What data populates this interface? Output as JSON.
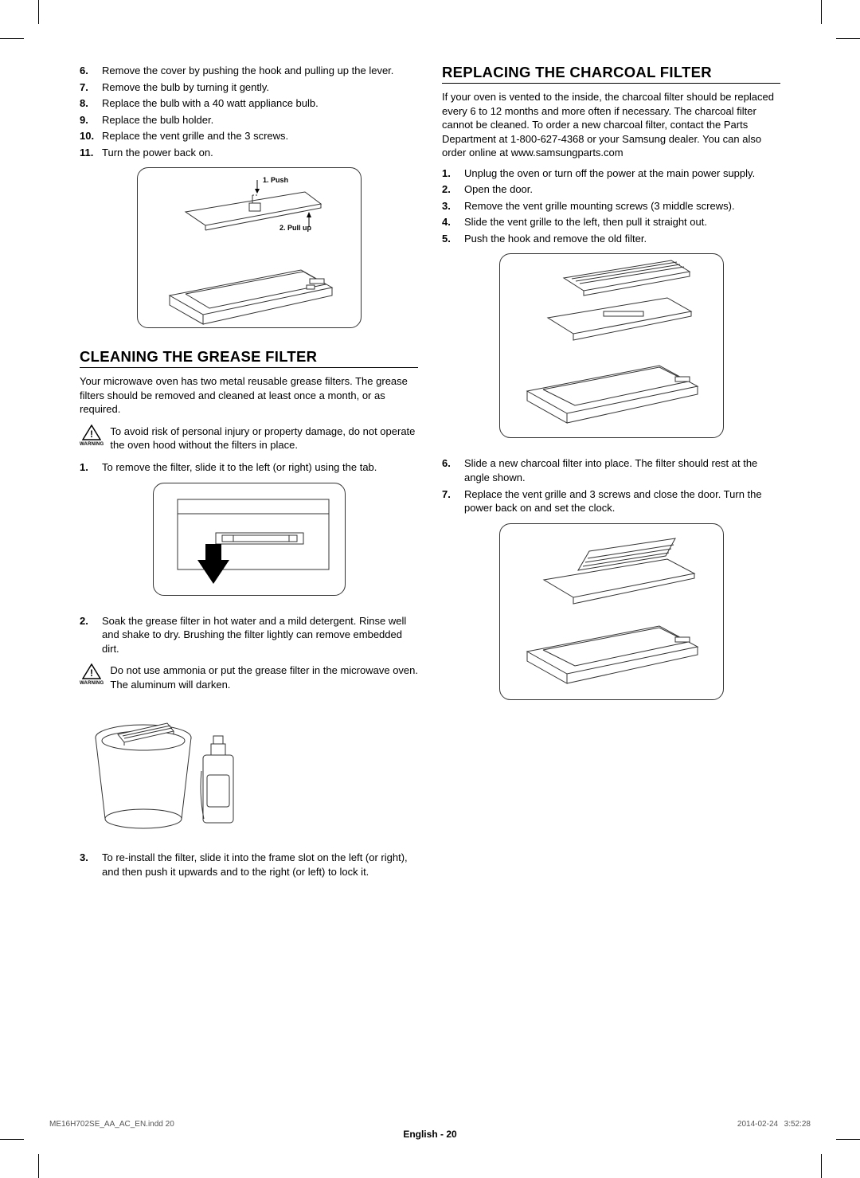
{
  "left": {
    "steps_a": [
      {
        "n": "6.",
        "t": "Remove the cover by pushing the hook and pulling up the lever."
      },
      {
        "n": "7.",
        "t": "Remove the bulb by turning it gently."
      },
      {
        "n": "8.",
        "t": "Replace the bulb with a 40 watt appliance bulb."
      },
      {
        "n": "9.",
        "t": "Replace the bulb holder."
      },
      {
        "n": "10.",
        "t": "Replace the vent grille and the 3 screws."
      },
      {
        "n": "11.",
        "t": "Turn the power back on."
      }
    ],
    "fig1_labels": {
      "push": "1. Push",
      "pull": "2. Pull up"
    },
    "h2_grease": "CLEANING THE GREASE FILTER",
    "grease_intro": "Your microwave oven has two metal reusable grease filters. The grease filters should be removed and cleaned at least once a month, or as required.",
    "warning1": "To avoid risk of personal injury or property damage, do not operate the oven hood without the filters in place.",
    "warning_label": "WARNING",
    "grease_steps_a": [
      {
        "n": "1.",
        "t": "To remove the filter, slide it to the left (or right) using the tab."
      }
    ],
    "grease_step2": {
      "n": "2.",
      "t": "Soak the grease filter in hot water and a mild detergent. Rinse well and shake to dry. Brushing the filter lightly can remove embedded dirt."
    },
    "warning2": "Do not use ammonia or put the grease filter in the microwave oven. The aluminum will darken.",
    "grease_step3": {
      "n": "3.",
      "t": "To re-install the filter, slide it into the frame slot on the left (or right), and then push it upwards and to the right (or left) to lock it."
    }
  },
  "right": {
    "h2_charcoal": "REPLACING THE CHARCOAL FILTER",
    "charcoal_intro": "If your oven is vented to the inside, the charcoal filter should be replaced every 6 to 12 months and more often if necessary. The charcoal filter cannot be cleaned. To order a new charcoal filter, contact the Parts Department at 1-800-627-4368 or your Samsung dealer. You can also order online at www.samsungparts.com",
    "charcoal_steps_a": [
      {
        "n": "1.",
        "t": "Unplug the oven or turn off the power at the main power supply."
      },
      {
        "n": "2.",
        "t": "Open the door."
      },
      {
        "n": "3.",
        "t": "Remove the vent grille mounting screws (3 middle screws)."
      },
      {
        "n": "4.",
        "t": "Slide the vent grille to the left, then pull it straight out."
      },
      {
        "n": "5.",
        "t": "Push the hook and remove the old filter."
      }
    ],
    "charcoal_steps_b": [
      {
        "n": "6.",
        "t": "Slide a new charcoal filter into place. The filter should rest at the angle shown."
      },
      {
        "n": "7.",
        "t": "Replace the vent grille and 3 screws and close the door. Turn the power back on and set the clock."
      }
    ]
  },
  "footer": {
    "lang": "English - ",
    "page": "20"
  },
  "print": {
    "left": "ME16H702SE_AA_AC_EN.indd   20",
    "right": "2014-02-24     3:52:28"
  },
  "colors": {
    "text": "#000000",
    "line": "#333333",
    "arrow": "#000000"
  }
}
